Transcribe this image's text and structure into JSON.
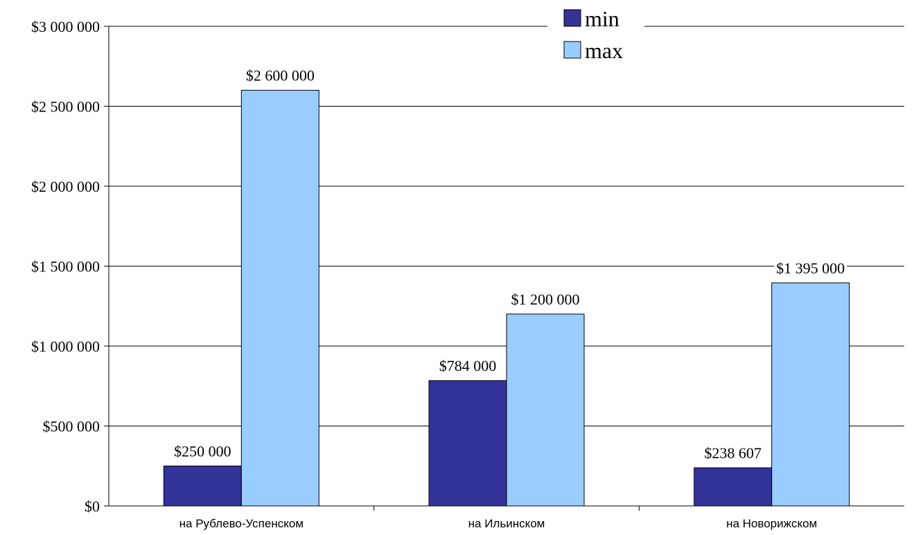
{
  "chart_data": {
    "type": "bar",
    "categories": [
      "на Рублево-Успенском",
      "на Ильинском",
      "на Новорижском"
    ],
    "series": [
      {
        "name": "min",
        "values": [
          250000,
          784000,
          238607
        ],
        "color": "#333399",
        "labels": [
          "$250 000",
          "$784 000",
          "$238 607"
        ]
      },
      {
        "name": "max",
        "values": [
          2600000,
          1200000,
          1395000
        ],
        "color": "#99ccff",
        "labels": [
          "$2 600 000",
          "$1 200 000",
          "$1 395 000"
        ]
      }
    ],
    "ylim": [
      0,
      3000000
    ],
    "yticks": [
      0,
      500000,
      1000000,
      1500000,
      2000000,
      2500000,
      3000000
    ],
    "ytick_labels": [
      "$0",
      "$500 000",
      "$1 000 000",
      "$1 500 000",
      "$2 000 000",
      "$2 500 000",
      "$3 000 000"
    ],
    "grid": true,
    "legend_position": "top-right",
    "title": "",
    "xlabel": "",
    "ylabel": ""
  }
}
